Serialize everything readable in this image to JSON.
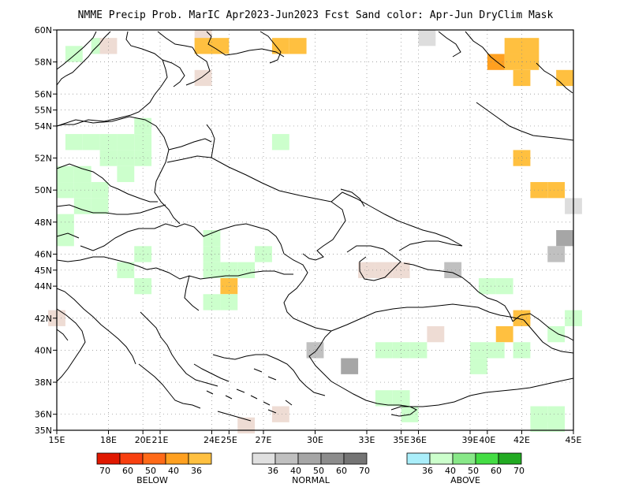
{
  "title": "NMME Precip Prob. MarIC  Apr2023-Jun2023 Fcst  Sand color: Apr-Jun DryClim Mask",
  "map": {
    "lon_range": [
      15,
      45
    ],
    "lat_range": [
      35,
      60
    ],
    "lat_ticks": [
      {
        "v": 60,
        "label": "60N"
      },
      {
        "v": 58,
        "label": "58N"
      },
      {
        "v": 56,
        "label": "56N"
      },
      {
        "v": 55,
        "label": "55N"
      },
      {
        "v": 54,
        "label": "54N"
      },
      {
        "v": 52,
        "label": "52N"
      },
      {
        "v": 50,
        "label": "50N"
      },
      {
        "v": 48,
        "label": "48N"
      },
      {
        "v": 46,
        "label": "46N"
      },
      {
        "v": 45,
        "label": "45N"
      },
      {
        "v": 44,
        "label": "44N"
      },
      {
        "v": 42,
        "label": "42N"
      },
      {
        "v": 40,
        "label": "40N"
      },
      {
        "v": 38,
        "label": "38N"
      },
      {
        "v": 36,
        "label": "36N"
      },
      {
        "v": 35,
        "label": "35N"
      }
    ],
    "lon_ticks": [
      {
        "v": 15,
        "label": "15E"
      },
      {
        "v": 18,
        "label": "18E"
      },
      {
        "v": 20,
        "label": "20E"
      },
      {
        "v": 21,
        "label": "21E"
      },
      {
        "v": 24,
        "label": "24E"
      },
      {
        "v": 25,
        "label": "25E"
      },
      {
        "v": 27,
        "label": "27E"
      },
      {
        "v": 30,
        "label": "30E"
      },
      {
        "v": 33,
        "label": "33E"
      },
      {
        "v": 35,
        "label": "35E"
      },
      {
        "v": 36,
        "label": "36E"
      },
      {
        "v": 39,
        "label": "39E"
      },
      {
        "v": 40,
        "label": "40E"
      },
      {
        "v": 42,
        "label": "42E"
      },
      {
        "v": 45,
        "label": "45E"
      }
    ],
    "colors": {
      "a36": "#ccffcc",
      "b36": "#ffc040",
      "b40": "#ffa020",
      "n36": "#dddddd",
      "n40": "#c0c0c0",
      "n50": "#a6a6a6",
      "dry": "#eedcd4"
    },
    "cells": [
      {
        "lon": 16,
        "lat": 58.5,
        "c": "a36"
      },
      {
        "lon": 17.5,
        "lat": 59,
        "c": "a36"
      },
      {
        "lon": 18,
        "lat": 59,
        "c": "dry"
      },
      {
        "lon": 23.5,
        "lat": 59.5,
        "c": "dry"
      },
      {
        "lon": 23.5,
        "lat": 59,
        "c": "b36"
      },
      {
        "lon": 24.5,
        "lat": 59,
        "c": "b36"
      },
      {
        "lon": 23.5,
        "lat": 57,
        "c": "dry"
      },
      {
        "lon": 28,
        "lat": 59,
        "c": "b36"
      },
      {
        "lon": 29,
        "lat": 59,
        "c": "b36"
      },
      {
        "lon": 36.5,
        "lat": 59.5,
        "c": "n36"
      },
      {
        "lon": 41.5,
        "lat": 59,
        "c": "b36"
      },
      {
        "lon": 42.5,
        "lat": 59,
        "c": "b36"
      },
      {
        "lon": 42.5,
        "lat": 58,
        "c": "b36"
      },
      {
        "lon": 41.5,
        "lat": 58,
        "c": "b36"
      },
      {
        "lon": 40.5,
        "lat": 58,
        "c": "b40"
      },
      {
        "lon": 42,
        "lat": 57,
        "c": "b36"
      },
      {
        "lon": 44.5,
        "lat": 57,
        "c": "b36"
      },
      {
        "lon": 16,
        "lat": 53,
        "c": "a36"
      },
      {
        "lon": 17,
        "lat": 53,
        "c": "a36"
      },
      {
        "lon": 18,
        "lat": 53,
        "c": "a36"
      },
      {
        "lon": 19,
        "lat": 53,
        "c": "a36"
      },
      {
        "lon": 20,
        "lat": 53,
        "c": "a36"
      },
      {
        "lon": 20,
        "lat": 54,
        "c": "a36"
      },
      {
        "lon": 18,
        "lat": 52,
        "c": "a36"
      },
      {
        "lon": 19,
        "lat": 52,
        "c": "a36"
      },
      {
        "lon": 20,
        "lat": 52,
        "c": "a36"
      },
      {
        "lon": 19,
        "lat": 51,
        "c": "a36"
      },
      {
        "lon": 15.5,
        "lat": 51,
        "c": "a36"
      },
      {
        "lon": 16.5,
        "lat": 51,
        "c": "a36"
      },
      {
        "lon": 15.5,
        "lat": 50,
        "c": "a36"
      },
      {
        "lon": 16.5,
        "lat": 50,
        "c": "a36"
      },
      {
        "lon": 17.5,
        "lat": 50,
        "c": "a36"
      },
      {
        "lon": 16.5,
        "lat": 49,
        "c": "a36"
      },
      {
        "lon": 17.5,
        "lat": 49,
        "c": "a36"
      },
      {
        "lon": 15.5,
        "lat": 48,
        "c": "a36"
      },
      {
        "lon": 15.5,
        "lat": 47,
        "c": "a36"
      },
      {
        "lon": 28,
        "lat": 53,
        "c": "a36"
      },
      {
        "lon": 42,
        "lat": 52,
        "c": "b36"
      },
      {
        "lon": 43,
        "lat": 50,
        "c": "b36"
      },
      {
        "lon": 44,
        "lat": 50,
        "c": "b36"
      },
      {
        "lon": 45,
        "lat": 49,
        "c": "n36"
      },
      {
        "lon": 44.5,
        "lat": 47,
        "c": "n50"
      },
      {
        "lon": 44,
        "lat": 46,
        "c": "n40"
      },
      {
        "lon": 20,
        "lat": 46,
        "c": "a36"
      },
      {
        "lon": 19,
        "lat": 45,
        "c": "a36"
      },
      {
        "lon": 20,
        "lat": 44,
        "c": "a36"
      },
      {
        "lon": 24,
        "lat": 47,
        "c": "a36"
      },
      {
        "lon": 24,
        "lat": 46,
        "c": "a36"
      },
      {
        "lon": 24,
        "lat": 45,
        "c": "a36"
      },
      {
        "lon": 25,
        "lat": 45,
        "c": "a36"
      },
      {
        "lon": 26,
        "lat": 45,
        "c": "a36"
      },
      {
        "lon": 27,
        "lat": 46,
        "c": "a36"
      },
      {
        "lon": 25,
        "lat": 44,
        "c": "b36"
      },
      {
        "lon": 24,
        "lat": 43,
        "c": "a36"
      },
      {
        "lon": 25,
        "lat": 43,
        "c": "a36"
      },
      {
        "lon": 33,
        "lat": 45,
        "c": "dry"
      },
      {
        "lon": 34,
        "lat": 45,
        "c": "dry"
      },
      {
        "lon": 35,
        "lat": 45,
        "c": "dry"
      },
      {
        "lon": 38,
        "lat": 45,
        "c": "n40"
      },
      {
        "lon": 40,
        "lat": 44,
        "c": "a36"
      },
      {
        "lon": 41,
        "lat": 44,
        "c": "a36"
      },
      {
        "lon": 42,
        "lat": 42,
        "c": "b36"
      },
      {
        "lon": 41,
        "lat": 41,
        "c": "b36"
      },
      {
        "lon": 45,
        "lat": 42,
        "c": "a36"
      },
      {
        "lon": 44,
        "lat": 41,
        "c": "a36"
      },
      {
        "lon": 39.5,
        "lat": 40,
        "c": "a36"
      },
      {
        "lon": 40.5,
        "lat": 40,
        "c": "a36"
      },
      {
        "lon": 39.5,
        "lat": 39,
        "c": "a36"
      },
      {
        "lon": 42,
        "lat": 40,
        "c": "a36"
      },
      {
        "lon": 37,
        "lat": 41,
        "c": "dry"
      },
      {
        "lon": 34,
        "lat": 40,
        "c": "a36"
      },
      {
        "lon": 35,
        "lat": 40,
        "c": "a36"
      },
      {
        "lon": 36,
        "lat": 40,
        "c": "a36"
      },
      {
        "lon": 30,
        "lat": 40,
        "c": "n40"
      },
      {
        "lon": 32,
        "lat": 39,
        "c": "n50"
      },
      {
        "lon": 34,
        "lat": 37,
        "c": "a36"
      },
      {
        "lon": 35,
        "lat": 37,
        "c": "a36"
      },
      {
        "lon": 35.5,
        "lat": 36,
        "c": "a36"
      },
      {
        "lon": 43,
        "lat": 36,
        "c": "a36"
      },
      {
        "lon": 44,
        "lat": 36,
        "c": "a36"
      },
      {
        "lon": 43,
        "lat": 35.4,
        "c": "a36"
      },
      {
        "lon": 44,
        "lat": 35.4,
        "c": "a36"
      },
      {
        "lon": 15,
        "lat": 42,
        "c": "dry"
      },
      {
        "lon": 28,
        "lat": 36,
        "c": "dry"
      },
      {
        "lon": 26,
        "lat": 35.3,
        "c": "dry"
      }
    ]
  },
  "legend": {
    "below": {
      "title": "BELOW",
      "colors": [
        "#e01800",
        "#f84010",
        "#ff6a18",
        "#ffa020",
        "#ffc040"
      ],
      "labels": [
        "70",
        "60",
        "50",
        "40",
        "36"
      ]
    },
    "normal": {
      "title": "NORMAL",
      "colors": [
        "#e0e0e0",
        "#c0c0c0",
        "#a6a6a6",
        "#8c8c8c",
        "#747474"
      ],
      "labels": [
        "36",
        "40",
        "50",
        "60",
        "70"
      ]
    },
    "above": {
      "title": "ABOVE",
      "colors": [
        "#aaeefa",
        "#ccffcc",
        "#88e888",
        "#44dd44",
        "#22aa22"
      ],
      "labels": [
        "36",
        "40",
        "50",
        "60",
        "70"
      ]
    }
  }
}
